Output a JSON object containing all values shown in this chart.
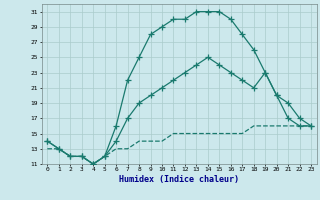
{
  "xlabel": "Humidex (Indice chaleur)",
  "bg_color": "#cce8ec",
  "grid_color": "#aacccc",
  "line_color": "#1a7a6e",
  "xlim": [
    -0.5,
    23.5
  ],
  "ylim": [
    11,
    32
  ],
  "xticks": [
    0,
    1,
    2,
    3,
    4,
    5,
    6,
    7,
    8,
    9,
    10,
    11,
    12,
    13,
    14,
    15,
    16,
    17,
    18,
    19,
    20,
    21,
    22,
    23
  ],
  "yticks": [
    11,
    13,
    15,
    17,
    19,
    21,
    23,
    25,
    27,
    29,
    31
  ],
  "line1_x": [
    0,
    1,
    2,
    3,
    4,
    5,
    6,
    7,
    8,
    9,
    10,
    11,
    12,
    13,
    14,
    15,
    16,
    17,
    18,
    19,
    20,
    21,
    22,
    23
  ],
  "line1_y": [
    14,
    13,
    12,
    12,
    11,
    12,
    16,
    22,
    25,
    28,
    29,
    30,
    30,
    31,
    31,
    31,
    30,
    28,
    26,
    23,
    20,
    17,
    16,
    16
  ],
  "line2_x": [
    0,
    1,
    2,
    3,
    4,
    5,
    6,
    7,
    8,
    9,
    10,
    11,
    12,
    13,
    14,
    15,
    16,
    17,
    18,
    19,
    20,
    21,
    22,
    23
  ],
  "line2_y": [
    14,
    13,
    12,
    12,
    11,
    12,
    14,
    17,
    19,
    20,
    21,
    22,
    23,
    24,
    25,
    24,
    23,
    22,
    21,
    23,
    20,
    19,
    17,
    16
  ],
  "line3_x": [
    0,
    1,
    2,
    3,
    4,
    5,
    6,
    7,
    8,
    9,
    10,
    11,
    12,
    13,
    14,
    15,
    16,
    17,
    18,
    19,
    20,
    21,
    22,
    23
  ],
  "line3_y": [
    13,
    13,
    12,
    12,
    11,
    12,
    13,
    13,
    14,
    14,
    14,
    15,
    15,
    15,
    15,
    15,
    15,
    15,
    16,
    16,
    16,
    16,
    16,
    16
  ]
}
